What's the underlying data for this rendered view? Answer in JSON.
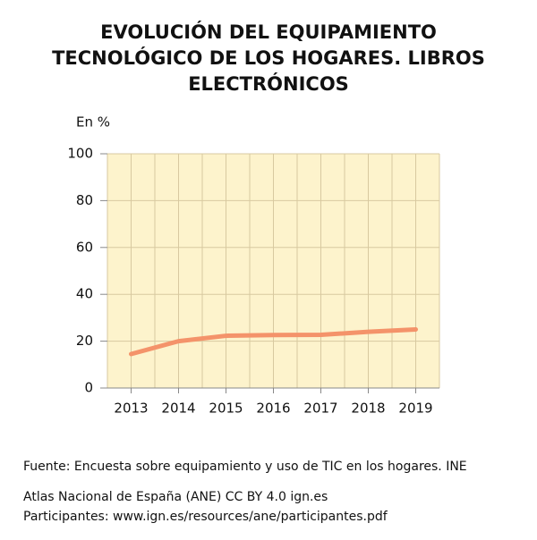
{
  "chart_data": {
    "type": "line",
    "title": [
      "EVOLUCIÓN DEL EQUIPAMIENTO",
      "TECNOLÓGICO DE LOS HOGARES. LIBROS",
      "ELECTRÓNICOS"
    ],
    "y_label": "En %",
    "categories": [
      "2013",
      "2014",
      "2015",
      "2016",
      "2017",
      "2018",
      "2019"
    ],
    "values": [
      14.5,
      20,
      22.3,
      22.6,
      22.7,
      24,
      25
    ],
    "color": "#f4936a",
    "ylim": [
      0,
      100
    ],
    "yticks": [
      0,
      20,
      40,
      60,
      80,
      100
    ],
    "grid": true,
    "notes": [
      "Fuente: Encuesta sobre equipamiento y uso de TIC en los hogares. INE",
      "Atlas Nacional de España (ANE) CC BY 4.0 ign.es",
      "Participantes: www.ign.es/resources/ane/participantes.pdf"
    ]
  }
}
